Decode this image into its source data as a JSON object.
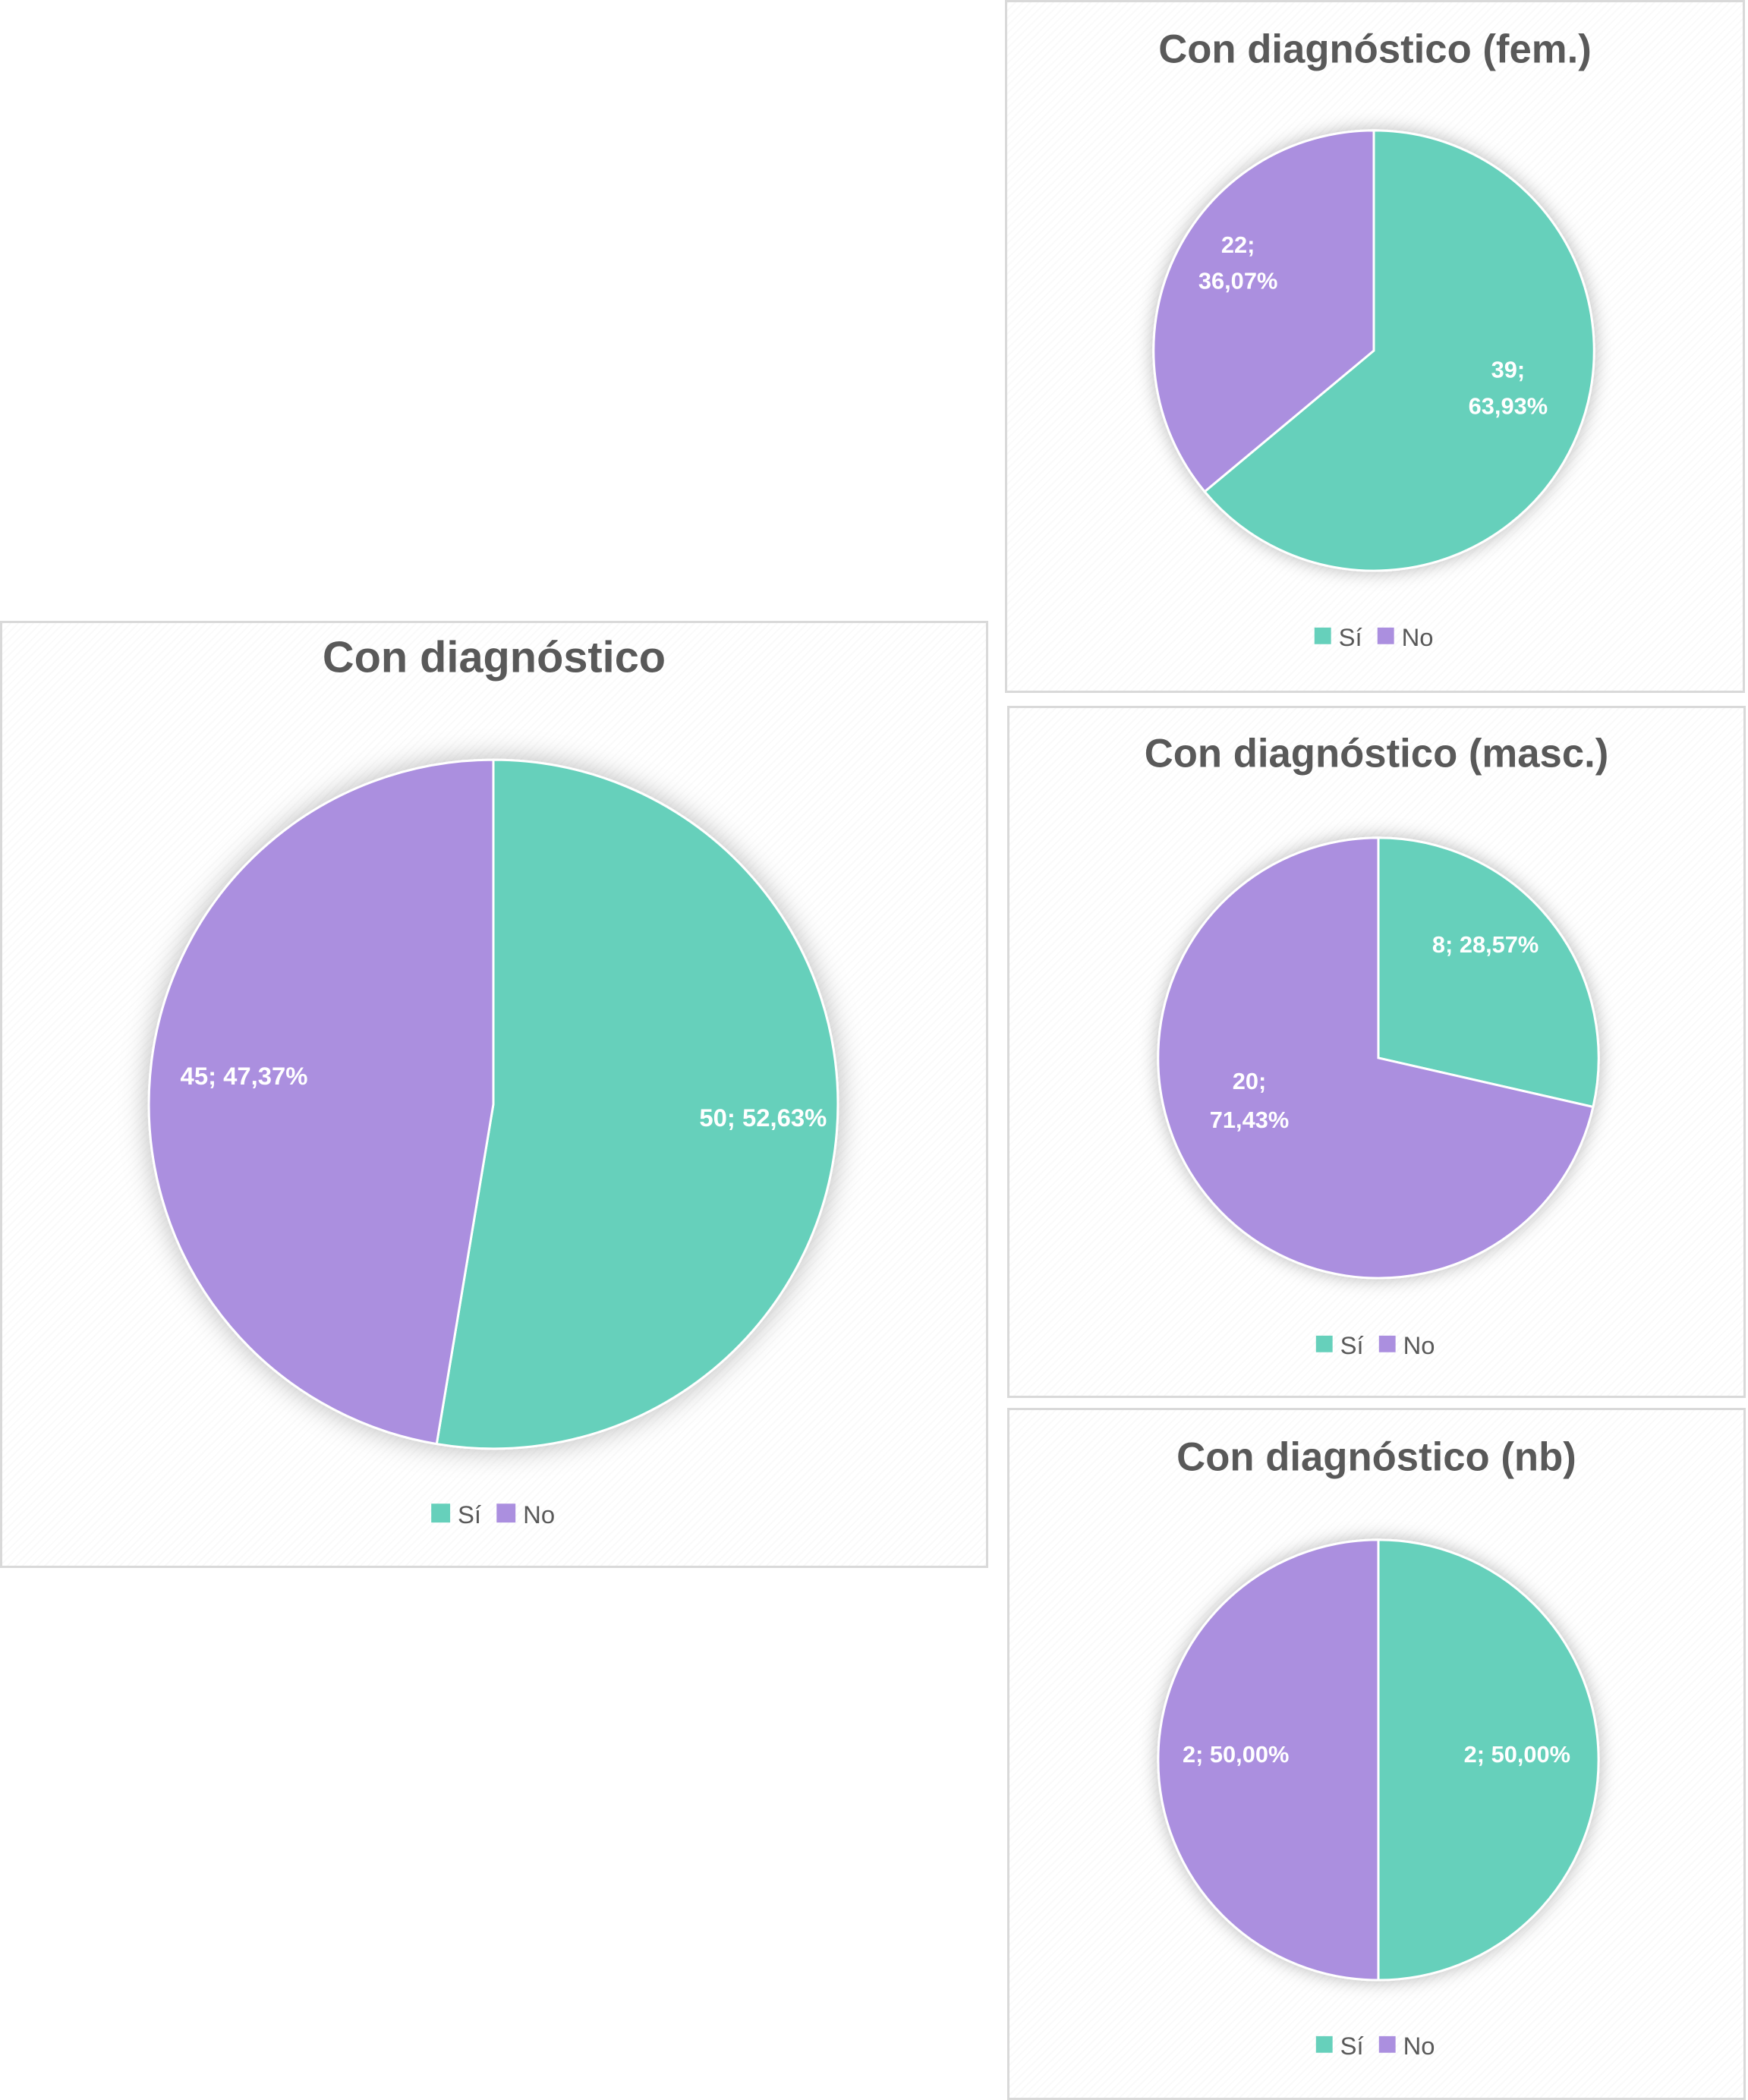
{
  "colors": {
    "si": "#66d0bb",
    "no": "#ab8fdf",
    "title": "#595959",
    "label": "#ffffff"
  },
  "chart_data": [
    {
      "type": "pie",
      "title": "Con diagnóstico",
      "categories": [
        "Sí",
        "No"
      ],
      "values": [
        50,
        45
      ],
      "percentages": [
        "52,63%",
        "47,37%"
      ],
      "data_labels": [
        [
          "50; 52,63%"
        ],
        [
          "45; 47,37%"
        ]
      ],
      "legend": [
        "Sí",
        "No"
      ],
      "legend_position": "bottom"
    },
    {
      "type": "pie",
      "title": "Con diagnóstico (fem.)",
      "categories": [
        "Sí",
        "No"
      ],
      "values": [
        39,
        22
      ],
      "percentages": [
        "63,93%",
        "36,07%"
      ],
      "data_labels": [
        [
          "39;",
          "63,93%"
        ],
        [
          "22;",
          "36,07%"
        ]
      ],
      "legend": [
        "Sí",
        "No"
      ],
      "legend_position": "bottom"
    },
    {
      "type": "pie",
      "title": "Con diagnóstico (masc.)",
      "categories": [
        "Sí",
        "No"
      ],
      "values": [
        8,
        20
      ],
      "percentages": [
        "28,57%",
        "71,43%"
      ],
      "data_labels": [
        [
          "8; 28,57%"
        ],
        [
          "20;",
          "71,43%"
        ]
      ],
      "legend": [
        "Sí",
        "No"
      ],
      "legend_position": "bottom"
    },
    {
      "type": "pie",
      "title": "Con diagnóstico (nb)",
      "categories": [
        "Sí",
        "No"
      ],
      "values": [
        2,
        2
      ],
      "percentages": [
        "50,00%",
        "50,00%"
      ],
      "data_labels": [
        [
          "2; 50,00%"
        ],
        [
          "2; 50,00%"
        ]
      ],
      "legend": [
        "Sí",
        "No"
      ],
      "legend_position": "bottom"
    }
  ]
}
